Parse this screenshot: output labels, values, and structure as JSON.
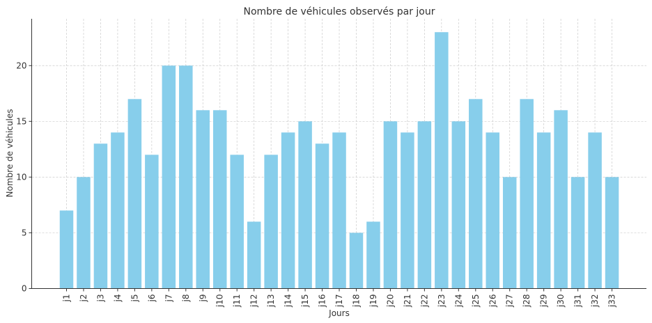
{
  "chart_data": {
    "type": "bar",
    "title": "Nombre de véhicules observés par jour",
    "xlabel": "Jours",
    "ylabel": "Nombre de véhicules",
    "categories": [
      "j1",
      "j2",
      "j3",
      "j4",
      "j5",
      "j6",
      "j7",
      "j8",
      "j9",
      "j10",
      "j11",
      "j12",
      "j13",
      "j14",
      "j15",
      "j16",
      "j17",
      "j18",
      "j19",
      "j20",
      "j21",
      "j22",
      "j23",
      "j24",
      "j25",
      "j26",
      "j27",
      "j28",
      "j29",
      "j30",
      "j31",
      "j32",
      "j33"
    ],
    "values": [
      7,
      10,
      13,
      14,
      17,
      12,
      20,
      20,
      16,
      16,
      12,
      6,
      12,
      14,
      15,
      13,
      14,
      5,
      6,
      15,
      14,
      15,
      23,
      15,
      17,
      14,
      10,
      17,
      14,
      16,
      10,
      14,
      10
    ],
    "yticks": [
      0,
      5,
      10,
      15,
      20
    ],
    "ylim": [
      0,
      24.2
    ],
    "grid": true,
    "bar_color": "#87CEEB"
  }
}
